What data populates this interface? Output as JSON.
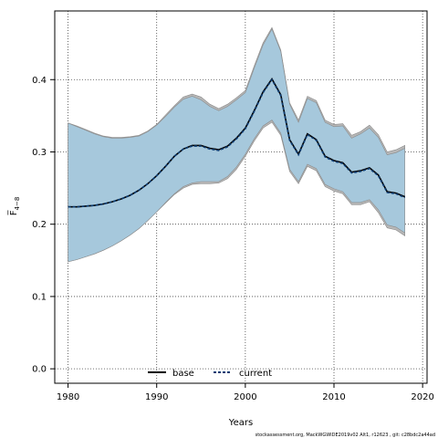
{
  "chart_data": {
    "type": "line",
    "xlabel": "Years",
    "ylabel": "F̅",
    "ylabel_sub": "4−8",
    "xlim": [
      1978.5,
      2020.5
    ],
    "ylim": [
      -0.02,
      0.495
    ],
    "xticks": [
      1980,
      1990,
      2000,
      2010,
      2020
    ],
    "yticks": [
      0.0,
      0.1,
      0.2,
      0.3,
      0.4
    ],
    "ytick_labels": [
      "0.0",
      "0.1",
      "0.2",
      "0.3",
      "0.4"
    ],
    "grid": true,
    "legend_position": "bottom-center",
    "x": [
      1980,
      1981,
      1982,
      1983,
      1984,
      1985,
      1986,
      1987,
      1988,
      1989,
      1990,
      1991,
      1992,
      1993,
      1994,
      1995,
      1996,
      1997,
      1998,
      1999,
      2000,
      2001,
      2002,
      2003,
      2004,
      2005,
      2006,
      2007,
      2008,
      2009,
      2010,
      2011,
      2012,
      2013,
      2014,
      2015,
      2016,
      2017,
      2018
    ],
    "bands": [
      {
        "role": "base-interval",
        "color": "#b8b8b8",
        "upper": [
          0.34,
          0.336,
          0.331,
          0.326,
          0.322,
          0.32,
          0.32,
          0.321,
          0.323,
          0.329,
          0.338,
          0.351,
          0.364,
          0.376,
          0.38,
          0.376,
          0.366,
          0.36,
          0.366,
          0.375,
          0.385,
          0.419,
          0.451,
          0.472,
          0.441,
          0.368,
          0.344,
          0.377,
          0.371,
          0.344,
          0.338,
          0.339,
          0.323,
          0.328,
          0.337,
          0.324,
          0.3,
          0.303,
          0.309
        ],
        "lower": [
          0.148,
          0.151,
          0.155,
          0.159,
          0.164,
          0.17,
          0.177,
          0.185,
          0.194,
          0.205,
          0.217,
          0.229,
          0.241,
          0.25,
          0.255,
          0.256,
          0.256,
          0.257,
          0.263,
          0.276,
          0.294,
          0.315,
          0.333,
          0.341,
          0.323,
          0.273,
          0.256,
          0.28,
          0.274,
          0.252,
          0.246,
          0.242,
          0.227,
          0.227,
          0.231,
          0.216,
          0.195,
          0.192,
          0.184
        ]
      },
      {
        "role": "current-interval",
        "color": "#a6c8dc",
        "upper": [
          0.34,
          0.335,
          0.33,
          0.325,
          0.321,
          0.319,
          0.319,
          0.32,
          0.322,
          0.328,
          0.337,
          0.349,
          0.362,
          0.373,
          0.377,
          0.372,
          0.363,
          0.357,
          0.363,
          0.372,
          0.382,
          0.416,
          0.448,
          0.47,
          0.439,
          0.366,
          0.341,
          0.374,
          0.368,
          0.341,
          0.335,
          0.336,
          0.319,
          0.325,
          0.333,
          0.32,
          0.296,
          0.299,
          0.305
        ],
        "lower": [
          0.148,
          0.151,
          0.155,
          0.159,
          0.164,
          0.17,
          0.177,
          0.185,
          0.194,
          0.205,
          0.217,
          0.23,
          0.242,
          0.252,
          0.257,
          0.259,
          0.259,
          0.259,
          0.266,
          0.279,
          0.297,
          0.318,
          0.336,
          0.344,
          0.326,
          0.276,
          0.259,
          0.283,
          0.277,
          0.255,
          0.249,
          0.245,
          0.23,
          0.23,
          0.234,
          0.22,
          0.199,
          0.196,
          0.188
        ]
      }
    ],
    "series": [
      {
        "name": "base",
        "color": "#000000",
        "dash": "solid",
        "values": [
          0.224,
          0.224,
          0.225,
          0.226,
          0.228,
          0.231,
          0.235,
          0.24,
          0.247,
          0.256,
          0.267,
          0.28,
          0.294,
          0.304,
          0.309,
          0.309,
          0.305,
          0.303,
          0.308,
          0.319,
          0.333,
          0.357,
          0.383,
          0.401,
          0.379,
          0.317,
          0.297,
          0.325,
          0.317,
          0.294,
          0.288,
          0.285,
          0.272,
          0.274,
          0.278,
          0.268,
          0.245,
          0.243,
          0.238
        ]
      },
      {
        "name": "current",
        "color": "#0b3c73",
        "dash": "dashed",
        "values": [
          0.224,
          0.224,
          0.225,
          0.226,
          0.228,
          0.231,
          0.235,
          0.24,
          0.247,
          0.256,
          0.267,
          0.28,
          0.294,
          0.304,
          0.308,
          0.308,
          0.304,
          0.302,
          0.307,
          0.318,
          0.332,
          0.356,
          0.382,
          0.4,
          0.378,
          0.316,
          0.296,
          0.324,
          0.316,
          0.293,
          0.287,
          0.284,
          0.271,
          0.273,
          0.277,
          0.267,
          0.244,
          0.242,
          0.237
        ]
      }
    ],
    "footer": "stockassessment.org,  MackWGWIDE2019v02  Alt1,  r12623 ,  git:  c28bdc2a44ad"
  }
}
